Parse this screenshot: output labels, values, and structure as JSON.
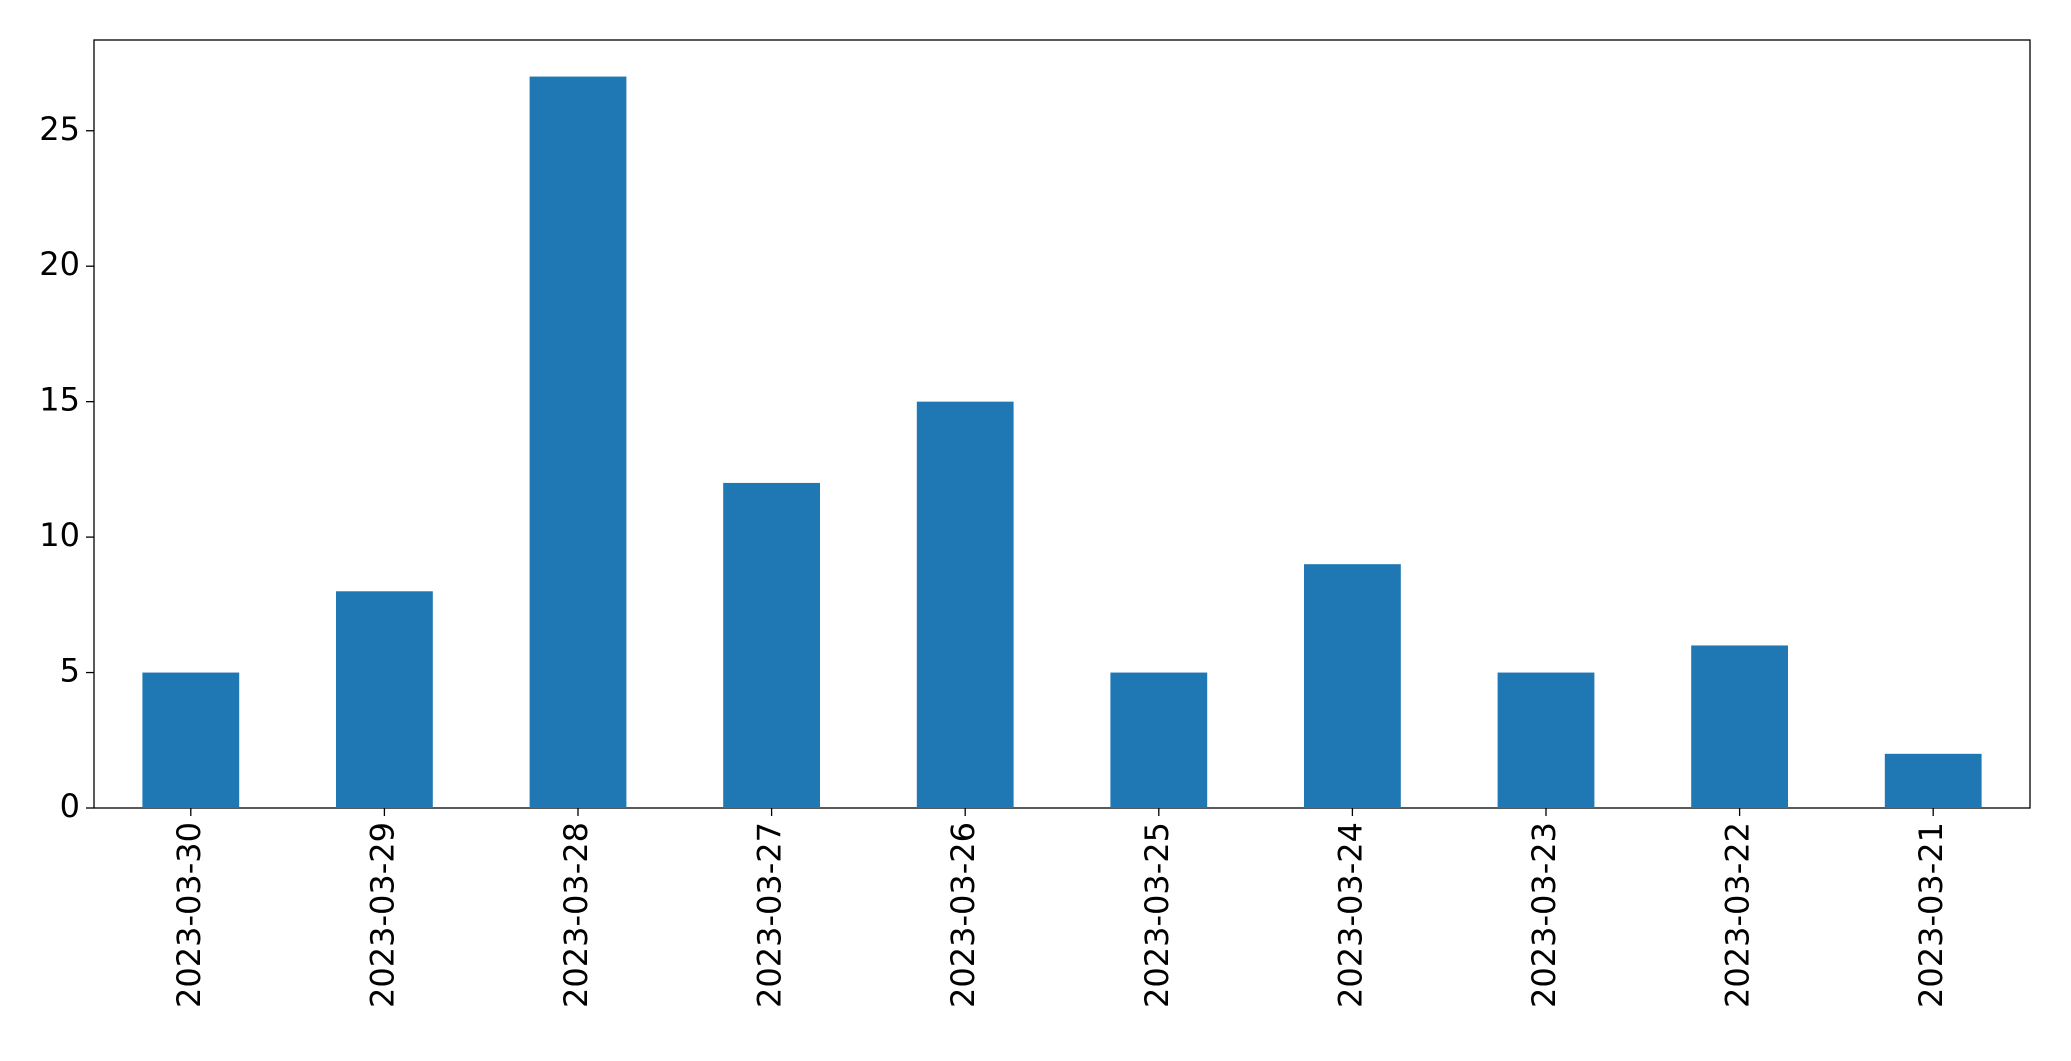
{
  "chart_data": {
    "type": "bar",
    "categories": [
      "2023-03-30",
      "2023-03-29",
      "2023-03-28",
      "2023-03-27",
      "2023-03-26",
      "2023-03-25",
      "2023-03-24",
      "2023-03-23",
      "2023-03-22",
      "2023-03-21"
    ],
    "values": [
      5,
      8,
      27,
      12,
      15,
      5,
      9,
      5,
      6,
      2
    ],
    "color": "#1f77b4",
    "ylim": [
      0,
      28.35
    ],
    "yticks": [
      0,
      5,
      10,
      15,
      20,
      25
    ],
    "grid": false
  }
}
